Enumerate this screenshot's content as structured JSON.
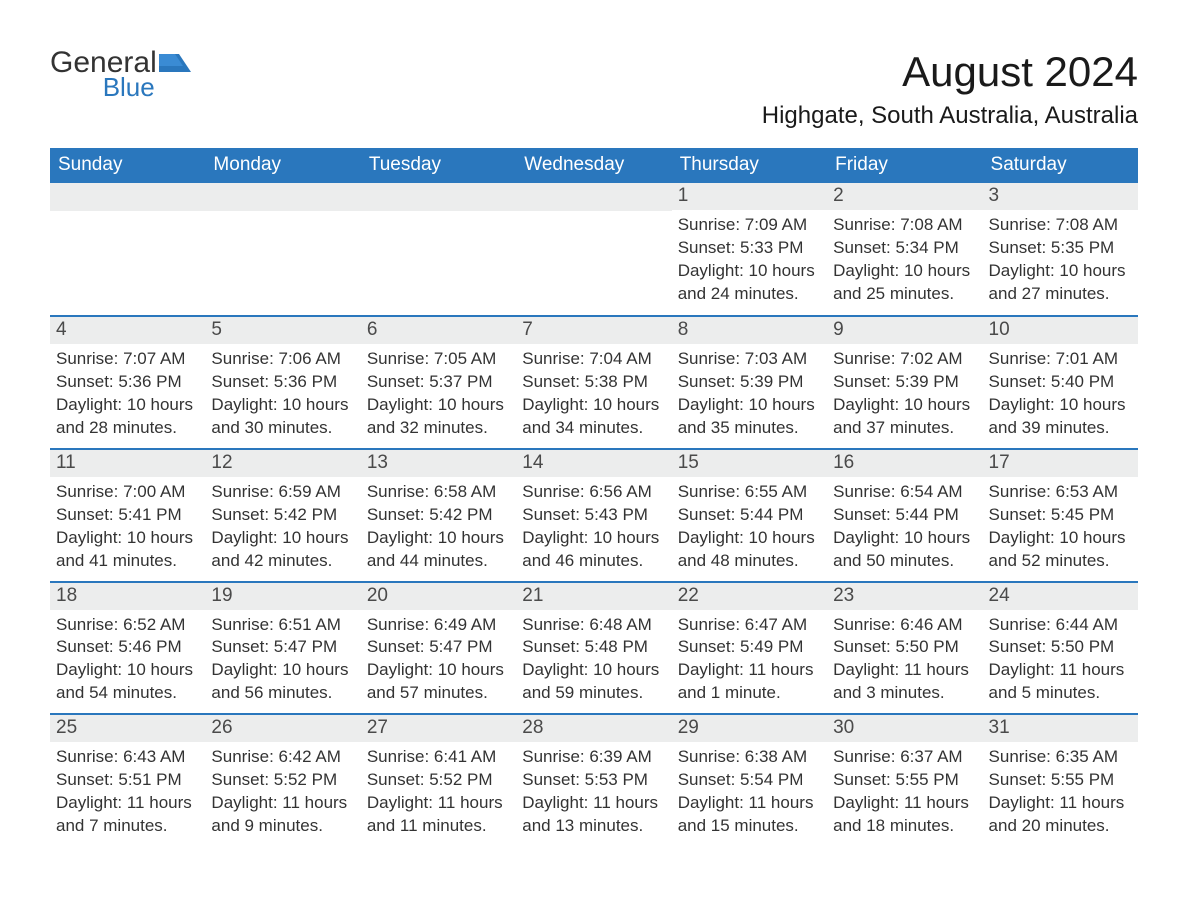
{
  "brand": {
    "general": "General",
    "blue": "Blue"
  },
  "title": "August 2024",
  "location": "Highgate, South Australia, Australia",
  "colors": {
    "header_bg": "#2a77bd",
    "header_text": "#ffffff",
    "date_bg": "#eceded",
    "text": "#333333",
    "page_bg": "#ffffff",
    "row_border": "#2a77bd"
  },
  "typography": {
    "title_fontsize": 42,
    "location_fontsize": 24,
    "dayheader_fontsize": 19,
    "date_fontsize": 19,
    "detail_fontsize": 17
  },
  "day_names": [
    "Sunday",
    "Monday",
    "Tuesday",
    "Wednesday",
    "Thursday",
    "Friday",
    "Saturday"
  ],
  "weeks": [
    [
      null,
      null,
      null,
      null,
      {
        "date": "1",
        "sunrise": "7:09 AM",
        "sunset": "5:33 PM",
        "daylight": "10 hours and 24 minutes."
      },
      {
        "date": "2",
        "sunrise": "7:08 AM",
        "sunset": "5:34 PM",
        "daylight": "10 hours and 25 minutes."
      },
      {
        "date": "3",
        "sunrise": "7:08 AM",
        "sunset": "5:35 PM",
        "daylight": "10 hours and 27 minutes."
      }
    ],
    [
      {
        "date": "4",
        "sunrise": "7:07 AM",
        "sunset": "5:36 PM",
        "daylight": "10 hours and 28 minutes."
      },
      {
        "date": "5",
        "sunrise": "7:06 AM",
        "sunset": "5:36 PM",
        "daylight": "10 hours and 30 minutes."
      },
      {
        "date": "6",
        "sunrise": "7:05 AM",
        "sunset": "5:37 PM",
        "daylight": "10 hours and 32 minutes."
      },
      {
        "date": "7",
        "sunrise": "7:04 AM",
        "sunset": "5:38 PM",
        "daylight": "10 hours and 34 minutes."
      },
      {
        "date": "8",
        "sunrise": "7:03 AM",
        "sunset": "5:39 PM",
        "daylight": "10 hours and 35 minutes."
      },
      {
        "date": "9",
        "sunrise": "7:02 AM",
        "sunset": "5:39 PM",
        "daylight": "10 hours and 37 minutes."
      },
      {
        "date": "10",
        "sunrise": "7:01 AM",
        "sunset": "5:40 PM",
        "daylight": "10 hours and 39 minutes."
      }
    ],
    [
      {
        "date": "11",
        "sunrise": "7:00 AM",
        "sunset": "5:41 PM",
        "daylight": "10 hours and 41 minutes."
      },
      {
        "date": "12",
        "sunrise": "6:59 AM",
        "sunset": "5:42 PM",
        "daylight": "10 hours and 42 minutes."
      },
      {
        "date": "13",
        "sunrise": "6:58 AM",
        "sunset": "5:42 PM",
        "daylight": "10 hours and 44 minutes."
      },
      {
        "date": "14",
        "sunrise": "6:56 AM",
        "sunset": "5:43 PM",
        "daylight": "10 hours and 46 minutes."
      },
      {
        "date": "15",
        "sunrise": "6:55 AM",
        "sunset": "5:44 PM",
        "daylight": "10 hours and 48 minutes."
      },
      {
        "date": "16",
        "sunrise": "6:54 AM",
        "sunset": "5:44 PM",
        "daylight": "10 hours and 50 minutes."
      },
      {
        "date": "17",
        "sunrise": "6:53 AM",
        "sunset": "5:45 PM",
        "daylight": "10 hours and 52 minutes."
      }
    ],
    [
      {
        "date": "18",
        "sunrise": "6:52 AM",
        "sunset": "5:46 PM",
        "daylight": "10 hours and 54 minutes."
      },
      {
        "date": "19",
        "sunrise": "6:51 AM",
        "sunset": "5:47 PM",
        "daylight": "10 hours and 56 minutes."
      },
      {
        "date": "20",
        "sunrise": "6:49 AM",
        "sunset": "5:47 PM",
        "daylight": "10 hours and 57 minutes."
      },
      {
        "date": "21",
        "sunrise": "6:48 AM",
        "sunset": "5:48 PM",
        "daylight": "10 hours and 59 minutes."
      },
      {
        "date": "22",
        "sunrise": "6:47 AM",
        "sunset": "5:49 PM",
        "daylight": "11 hours and 1 minute."
      },
      {
        "date": "23",
        "sunrise": "6:46 AM",
        "sunset": "5:50 PM",
        "daylight": "11 hours and 3 minutes."
      },
      {
        "date": "24",
        "sunrise": "6:44 AM",
        "sunset": "5:50 PM",
        "daylight": "11 hours and 5 minutes."
      }
    ],
    [
      {
        "date": "25",
        "sunrise": "6:43 AM",
        "sunset": "5:51 PM",
        "daylight": "11 hours and 7 minutes."
      },
      {
        "date": "26",
        "sunrise": "6:42 AM",
        "sunset": "5:52 PM",
        "daylight": "11 hours and 9 minutes."
      },
      {
        "date": "27",
        "sunrise": "6:41 AM",
        "sunset": "5:52 PM",
        "daylight": "11 hours and 11 minutes."
      },
      {
        "date": "28",
        "sunrise": "6:39 AM",
        "sunset": "5:53 PM",
        "daylight": "11 hours and 13 minutes."
      },
      {
        "date": "29",
        "sunrise": "6:38 AM",
        "sunset": "5:54 PM",
        "daylight": "11 hours and 15 minutes."
      },
      {
        "date": "30",
        "sunrise": "6:37 AM",
        "sunset": "5:55 PM",
        "daylight": "11 hours and 18 minutes."
      },
      {
        "date": "31",
        "sunrise": "6:35 AM",
        "sunset": "5:55 PM",
        "daylight": "11 hours and 20 minutes."
      }
    ]
  ],
  "labels": {
    "sunrise": "Sunrise: ",
    "sunset": "Sunset: ",
    "daylight": "Daylight: "
  }
}
